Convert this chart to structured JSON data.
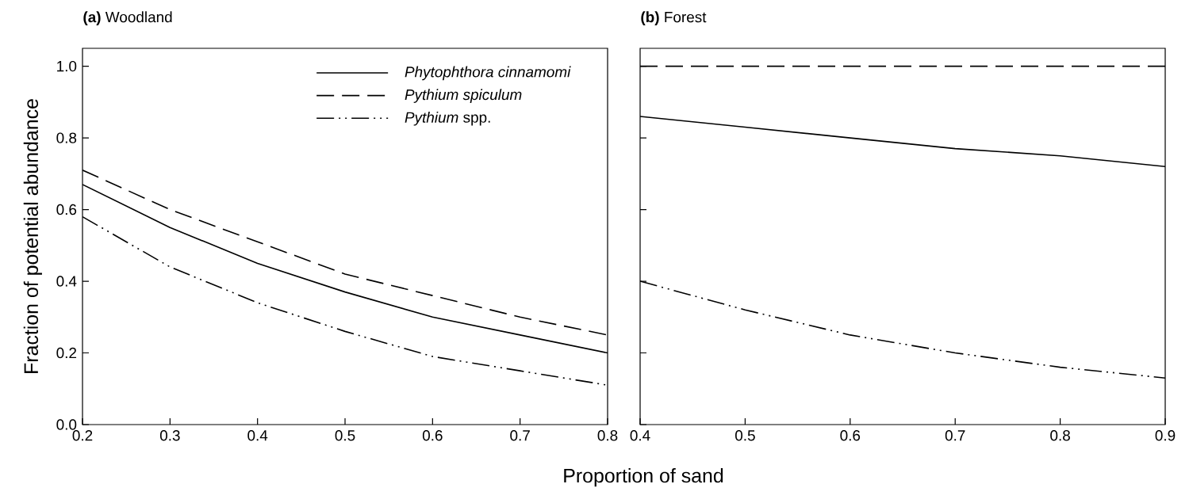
{
  "chart_data": [
    {
      "type": "line",
      "title": "**(a)** Woodland",
      "xlabel": "Proportion of sand",
      "ylabel": "Fraction of potential abundance",
      "xlim": [
        0.2,
        0.8
      ],
      "ylim": [
        0,
        1.05
      ],
      "xticks": [
        0.2,
        0.3,
        0.4,
        0.5,
        0.6,
        0.7,
        0.8
      ],
      "yticks": [
        {
          "value": 0,
          "label": "0.0"
        },
        0.2,
        0.4,
        0.6,
        0.8,
        {
          "value": 1,
          "label": "1.0"
        }
      ],
      "legend": "top right",
      "x": [
        0.2,
        0.3,
        0.4,
        0.5,
        0.6,
        0.7,
        0.8
      ],
      "series": [
        {
          "name": "*Phytophthora cinnamomi*",
          "color": "#000000",
          "line_style": "solid",
          "values": [
            0.67,
            0.55,
            0.45,
            0.37,
            0.3,
            0.25,
            0.2
          ]
        },
        {
          "name": "*Pythium spiculum*",
          "color": "#000000",
          "line_style": "dashed",
          "values": [
            0.71,
            0.6,
            0.51,
            0.42,
            0.36,
            0.3,
            0.25
          ]
        },
        {
          "name": "*Pythium* spp.",
          "color": "#000000",
          "line_style": "dashdotdotted",
          "values": [
            0.58,
            0.44,
            0.34,
            0.26,
            0.19,
            0.15,
            0.11
          ]
        }
      ]
    },
    {
      "type": "line",
      "title": "**(b)** Forest",
      "xlim": [
        0.4,
        0.9
      ],
      "ylim": [
        0,
        1.05
      ],
      "xticks": [
        0.4,
        0.5,
        0.6,
        0.7,
        0.8,
        0.9
      ],
      "yticks": [
        0.0,
        0.2,
        0.4,
        0.6,
        0.8,
        1.0
      ],
      "tick_labels": "x",
      "x": [
        0.4,
        0.5,
        0.6,
        0.7,
        0.8,
        0.9
      ],
      "series": [
        {
          "color": "#000000",
          "line_style": "solid",
          "values": [
            0.86,
            0.83,
            0.8,
            0.77,
            0.75,
            0.72
          ]
        },
        {
          "color": "#000000",
          "line_style": "dashed",
          "values": [
            1.0,
            1.0,
            1.0,
            1.0,
            1.0,
            1.0
          ]
        },
        {
          "color": "#000000",
          "line_style": "dashdotdotted",
          "values": [
            0.4,
            0.32,
            0.25,
            0.2,
            0.16,
            0.13
          ]
        }
      ]
    }
  ]
}
